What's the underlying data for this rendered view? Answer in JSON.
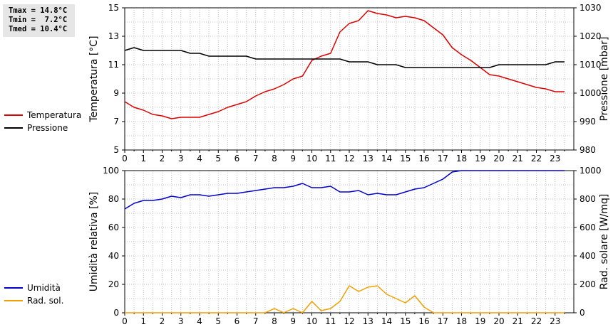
{
  "stats": {
    "lines": [
      "Tmax = 14.8°C",
      "Tmin =  7.2°C",
      "Tmed = 10.4°C"
    ]
  },
  "legend_top": [
    {
      "label": "Temperatura",
      "color": "#dd0000"
    },
    {
      "label": "Pressione",
      "color": "#000000"
    }
  ],
  "legend_bottom": [
    {
      "label": "Umidità",
      "color": "#0000cc"
    },
    {
      "label": "Rad. sol.",
      "color": "#f0a000"
    }
  ],
  "chart_data": [
    {
      "type": "line",
      "title": "",
      "xlabel": "",
      "ylabel": "Temperatura [°C]",
      "y2label": "Pressione [mbar]",
      "xlim": [
        0,
        24
      ],
      "xticks": [
        "0",
        "1",
        "2",
        "3",
        "4",
        "5",
        "6",
        "7",
        "8",
        "9",
        "10",
        "11",
        "12",
        "13",
        "14",
        "15",
        "16",
        "17",
        "18",
        "19",
        "20",
        "21",
        "22",
        "23"
      ],
      "ylim": [
        5,
        15
      ],
      "yticks": [
        "5",
        "7",
        "9",
        "11",
        "13",
        "15"
      ],
      "y2lim": [
        980,
        1030
      ],
      "y2ticks": [
        "980",
        "990",
        "1000",
        "1010",
        "1020",
        "1030"
      ],
      "grid": true,
      "legend": "left",
      "series": [
        {
          "name": "Temperatura",
          "axis": "left",
          "color": "#dd0000",
          "x": [
            0,
            0.5,
            1,
            1.5,
            2,
            2.5,
            3,
            3.5,
            4,
            4.5,
            5,
            5.5,
            6,
            6.5,
            7,
            7.5,
            8,
            8.5,
            9,
            9.5,
            10,
            10.5,
            11,
            11.5,
            12,
            12.5,
            13,
            13.5,
            14,
            14.5,
            15,
            15.5,
            16,
            16.5,
            17,
            17.5,
            18,
            18.5,
            19,
            19.5,
            20,
            20.5,
            21,
            21.5,
            22,
            22.5,
            23,
            23.5
          ],
          "y": [
            8.4,
            8.0,
            7.8,
            7.5,
            7.4,
            7.2,
            7.3,
            7.3,
            7.3,
            7.5,
            7.7,
            8.0,
            8.2,
            8.4,
            8.8,
            9.1,
            9.3,
            9.6,
            10.0,
            10.2,
            11.3,
            11.6,
            11.8,
            13.3,
            13.9,
            14.1,
            14.8,
            14.6,
            14.5,
            14.3,
            14.4,
            14.3,
            14.1,
            13.6,
            13.1,
            12.2,
            11.7,
            11.3,
            10.8,
            10.3,
            10.2,
            10.0,
            9.8,
            9.6,
            9.4,
            9.3,
            9.1,
            9.1
          ]
        },
        {
          "name": "Pressione",
          "axis": "right",
          "color": "#000000",
          "x": [
            0,
            0.5,
            1,
            1.5,
            2,
            2.5,
            3,
            3.5,
            4,
            4.5,
            5,
            5.5,
            6,
            6.5,
            7,
            7.5,
            8,
            8.5,
            9,
            9.5,
            10,
            10.5,
            11,
            11.5,
            12,
            12.5,
            13,
            13.5,
            14,
            14.5,
            15,
            15.5,
            16,
            16.5,
            17,
            17.5,
            18,
            18.5,
            19,
            19.5,
            20,
            20.5,
            21,
            21.5,
            22,
            22.5,
            23,
            23.5
          ],
          "y": [
            1015,
            1016,
            1015,
            1015,
            1015,
            1015,
            1015,
            1014,
            1014,
            1013,
            1013,
            1013,
            1013,
            1013,
            1012,
            1012,
            1012,
            1012,
            1012,
            1012,
            1012,
            1012,
            1012,
            1012,
            1011,
            1011,
            1011,
            1010,
            1010,
            1010,
            1009,
            1009,
            1009,
            1009,
            1009,
            1009,
            1009,
            1009,
            1009,
            1009,
            1010,
            1010,
            1010,
            1010,
            1010,
            1010,
            1011,
            1011
          ]
        }
      ]
    },
    {
      "type": "line",
      "title": "",
      "xlabel": "",
      "ylabel": "Umidità relativa [%]",
      "y2label": "Rad. solare [W/mq]",
      "xlim": [
        0,
        24
      ],
      "xticks": [
        "0",
        "1",
        "2",
        "3",
        "4",
        "5",
        "6",
        "7",
        "8",
        "9",
        "10",
        "11",
        "12",
        "13",
        "14",
        "15",
        "16",
        "17",
        "18",
        "19",
        "20",
        "21",
        "22",
        "23"
      ],
      "ylim": [
        0,
        100
      ],
      "yticks": [
        "0",
        "20",
        "40",
        "60",
        "80",
        "100"
      ],
      "y2lim": [
        0,
        1000
      ],
      "y2ticks": [
        "0",
        "200",
        "400",
        "600",
        "800",
        "1000"
      ],
      "grid": true,
      "legend": "left",
      "series": [
        {
          "name": "Umidità",
          "axis": "left",
          "color": "#0000cc",
          "x": [
            0,
            0.5,
            1,
            1.5,
            2,
            2.5,
            3,
            3.5,
            4,
            4.5,
            5,
            5.5,
            6,
            6.5,
            7,
            7.5,
            8,
            8.5,
            9,
            9.5,
            10,
            10.5,
            11,
            11.5,
            12,
            12.5,
            13,
            13.5,
            14,
            14.5,
            15,
            15.5,
            16,
            16.5,
            17,
            17.5,
            18,
            18.5,
            19,
            19.5,
            20,
            20.5,
            21,
            21.5,
            22,
            22.5,
            23,
            23.5
          ],
          "y": [
            73,
            77,
            79,
            79,
            80,
            82,
            81,
            83,
            83,
            82,
            83,
            84,
            84,
            85,
            86,
            87,
            88,
            88,
            89,
            91,
            88,
            88,
            89,
            85,
            85,
            86,
            83,
            84,
            83,
            83,
            85,
            87,
            88,
            91,
            94,
            99,
            100,
            100,
            100,
            100,
            100,
            100,
            100,
            100,
            100,
            100,
            100,
            100
          ]
        },
        {
          "name": "Rad. sol.",
          "axis": "right",
          "color": "#f0a000",
          "x": [
            0,
            0.5,
            1,
            1.5,
            2,
            2.5,
            3,
            3.5,
            4,
            4.5,
            5,
            5.5,
            6,
            6.5,
            7,
            7.5,
            8,
            8.5,
            9,
            9.5,
            10,
            10.5,
            11,
            11.5,
            12,
            12.5,
            13,
            13.5,
            14,
            14.5,
            15,
            15.5,
            16,
            16.5,
            17,
            17.5,
            18,
            18.5,
            19,
            19.5,
            20,
            20.5,
            21,
            21.5,
            22,
            22.5,
            23,
            23.5
          ],
          "y": [
            0,
            0,
            0,
            0,
            0,
            0,
            0,
            0,
            0,
            0,
            0,
            0,
            0,
            0,
            0,
            0,
            30,
            0,
            30,
            0,
            80,
            15,
            30,
            80,
            190,
            150,
            180,
            190,
            130,
            100,
            70,
            120,
            40,
            0,
            0,
            0,
            0,
            0,
            0,
            0,
            0,
            0,
            0,
            0,
            0,
            0,
            0,
            0
          ]
        }
      ]
    }
  ]
}
